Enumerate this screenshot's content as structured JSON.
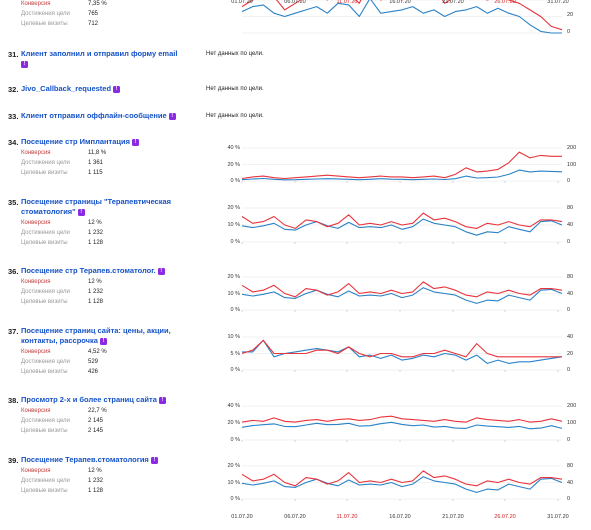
{
  "colors": {
    "conversion_line": "#e8343c",
    "visits_line": "#2a82c8",
    "link": "#1452c8",
    "badge": "#8a2be2"
  },
  "metric_labels": {
    "conversion": "Конверсия",
    "reached": "Достижения цели",
    "visits": "Целевые визиты"
  },
  "no_data_text": "Нет данных по цели.",
  "x_axis_ticks": [
    {
      "label": "01.07.20",
      "weekend": false
    },
    {
      "label": "06.07.20",
      "weekend": false
    },
    {
      "label": "11.07.20",
      "weekend": true
    },
    {
      "label": "16.07.20",
      "weekend": false
    },
    {
      "label": "21.07.20",
      "weekend": false
    },
    {
      "label": "26.07.20",
      "weekend": true
    },
    {
      "label": "31.07.20",
      "weekend": false
    }
  ],
  "top_partial": {
    "conversion": "7,35 %",
    "reached": "765",
    "visits": "712",
    "right_ticks": [
      "20",
      "0"
    ]
  },
  "goals": [
    {
      "number": "31.",
      "title_lines": [
        "Клиент заполнил и отправил форму email"
      ],
      "has_data": false
    },
    {
      "number": "32.",
      "title_lines": [
        "Jivo_Callback_requested"
      ],
      "has_data": false
    },
    {
      "number": "33.",
      "title_lines": [
        "Клиент отправил оффлайн-сообщение"
      ],
      "has_data": false
    },
    {
      "number": "34.",
      "title_lines": [
        "Посещение стр Имплантация"
      ],
      "has_data": true,
      "conversion": "11,8 %",
      "reached": "1 361",
      "visits": "1 115",
      "left_ticks": [
        "40 %",
        "20 %",
        "0 %"
      ],
      "right_ticks": [
        "200",
        "100",
        "0"
      ]
    },
    {
      "number": "35.",
      "title_lines": [
        "Посещение страницы \"Терапевтическая",
        "стоматология\""
      ],
      "has_data": true,
      "conversion": "12 %",
      "reached": "1 232",
      "visits": "1 128",
      "left_ticks": [
        "20 %",
        "10 %",
        "0 %"
      ],
      "right_ticks": [
        "80",
        "40",
        "0"
      ]
    },
    {
      "number": "36.",
      "title_lines": [
        "Посещение стр Терапев.стоматолог."
      ],
      "has_data": true,
      "conversion": "12 %",
      "reached": "1 232",
      "visits": "1 128",
      "left_ticks": [
        "20 %",
        "10 %",
        "0 %"
      ],
      "right_ticks": [
        "80",
        "40",
        "0"
      ]
    },
    {
      "number": "37.",
      "title_lines": [
        "Посещение страниц сайта: цены, акции,",
        "контакты, рассрочка"
      ],
      "has_data": true,
      "conversion": "4,52 %",
      "reached": "529",
      "visits": "426",
      "left_ticks": [
        "10 %",
        "5 %",
        "0 %"
      ],
      "right_ticks": [
        "40",
        "20",
        "0"
      ]
    },
    {
      "number": "38.",
      "title_lines": [
        "Просмотр 2-х и более страниц сайта"
      ],
      "has_data": true,
      "conversion": "22,7 %",
      "reached": "2 145",
      "visits": "2 145",
      "left_ticks": [
        "40 %",
        "20 %",
        "0 %"
      ],
      "right_ticks": [
        "200",
        "100",
        "0"
      ]
    },
    {
      "number": "39.",
      "title_lines": [
        "Посещение Терапев.стоматология"
      ],
      "has_data": true,
      "conversion": "12 %",
      "reached": "1 232",
      "visits": "1 128",
      "left_ticks": [
        "20 %",
        "10 %",
        "0 %"
      ],
      "right_ticks": [
        "80",
        "40",
        "0"
      ]
    }
  ],
  "chart_data": [
    {
      "type": "line",
      "goal": "30",
      "x_days": 31,
      "series": [
        {
          "axis": "left",
          "values": [
            8,
            10,
            12,
            11,
            7,
            9,
            11,
            12,
            10,
            14,
            12,
            9,
            16,
            10,
            11,
            10,
            12,
            11,
            14,
            9,
            11,
            12,
            11,
            10,
            11,
            10,
            9,
            7,
            5,
            2,
            1
          ]
        },
        {
          "axis": "right",
          "values": [
            13,
            16,
            17,
            12,
            10,
            12,
            14,
            16,
            12,
            18,
            17,
            10,
            21,
            12,
            13,
            14,
            16,
            12,
            14,
            10,
            13,
            14,
            16,
            12,
            15,
            12,
            10,
            5,
            1,
            0,
            0
          ]
        }
      ]
    },
    {
      "type": "line",
      "goal": "34",
      "x_days": 31,
      "series": [
        {
          "axis": "left",
          "values": [
            3,
            5,
            6,
            4,
            3,
            4,
            5,
            6,
            7,
            6,
            5,
            4,
            5,
            6,
            5,
            5,
            4,
            5,
            6,
            4,
            8,
            16,
            11,
            12,
            14,
            22,
            35,
            28,
            31,
            30,
            30
          ]
        },
        {
          "axis": "right",
          "values": [
            8,
            12,
            15,
            10,
            7,
            8,
            10,
            12,
            14,
            13,
            10,
            8,
            10,
            14,
            11,
            10,
            8,
            10,
            12,
            9,
            14,
            30,
            18,
            20,
            24,
            40,
            66,
            55,
            60,
            58,
            56
          ]
        }
      ]
    },
    {
      "type": "line",
      "goal": "35",
      "x_days": 31,
      "series": [
        {
          "axis": "left",
          "values": [
            15,
            11,
            12,
            15,
            10,
            8,
            13,
            12,
            9,
            11,
            16,
            10,
            11,
            10,
            12,
            10,
            11,
            17,
            13,
            14,
            12,
            9,
            8,
            11,
            10,
            12,
            10,
            9,
            13,
            13,
            12
          ]
        },
        {
          "axis": "right",
          "values": [
            38,
            34,
            38,
            44,
            30,
            28,
            40,
            48,
            38,
            32,
            46,
            34,
            36,
            34,
            40,
            30,
            36,
            54,
            44,
            40,
            36,
            24,
            16,
            24,
            22,
            36,
            30,
            24,
            48,
            50,
            40
          ]
        }
      ]
    },
    {
      "type": "line",
      "goal": "36",
      "x_days": 31,
      "series": [
        {
          "axis": "left",
          "values": [
            15,
            11,
            12,
            15,
            10,
            8,
            13,
            12,
            9,
            11,
            16,
            10,
            11,
            10,
            12,
            10,
            11,
            17,
            13,
            14,
            12,
            9,
            8,
            11,
            10,
            12,
            10,
            9,
            13,
            13,
            12
          ]
        },
        {
          "axis": "right",
          "values": [
            38,
            34,
            38,
            44,
            30,
            28,
            40,
            48,
            38,
            32,
            46,
            34,
            36,
            34,
            40,
            30,
            36,
            54,
            44,
            40,
            36,
            24,
            16,
            24,
            22,
            36,
            30,
            24,
            48,
            50,
            40
          ]
        }
      ]
    },
    {
      "type": "line",
      "goal": "37",
      "x_days": 31,
      "series": [
        {
          "axis": "left",
          "values": [
            5,
            6,
            9,
            5,
            5,
            5,
            5,
            6,
            6,
            5,
            7,
            5,
            4,
            5,
            5,
            4,
            4,
            5,
            5,
            6,
            5,
            4,
            8,
            5,
            4,
            4,
            4,
            4,
            4,
            4,
            4
          ]
        },
        {
          "axis": "right",
          "values": [
            22,
            22,
            36,
            16,
            20,
            22,
            24,
            26,
            24,
            22,
            28,
            16,
            18,
            14,
            18,
            12,
            14,
            18,
            16,
            20,
            18,
            12,
            18,
            8,
            12,
            8,
            10,
            10,
            12,
            14,
            16
          ]
        }
      ]
    },
    {
      "type": "line",
      "goal": "38",
      "x_days": 31,
      "series": [
        {
          "axis": "left",
          "values": [
            21,
            23,
            22,
            26,
            22,
            21,
            23,
            24,
            22,
            24,
            25,
            23,
            24,
            27,
            28,
            25,
            24,
            23,
            22,
            24,
            22,
            21,
            26,
            24,
            23,
            22,
            24,
            21,
            22,
            25,
            22
          ]
        },
        {
          "axis": "right",
          "values": [
            75,
            85,
            90,
            95,
            80,
            78,
            88,
            98,
            90,
            92,
            98,
            82,
            84,
            96,
            104,
            92,
            84,
            88,
            76,
            80,
            70,
            68,
            88,
            82,
            78,
            74,
            80,
            66,
            70,
            84,
            68
          ]
        }
      ]
    },
    {
      "type": "line",
      "goal": "39",
      "x_days": 31,
      "series": [
        {
          "axis": "left",
          "values": [
            15,
            11,
            12,
            15,
            10,
            8,
            13,
            12,
            9,
            11,
            16,
            10,
            11,
            10,
            12,
            10,
            11,
            17,
            13,
            14,
            12,
            9,
            8,
            11,
            10,
            12,
            10,
            9,
            13,
            13,
            12
          ]
        },
        {
          "axis": "right",
          "values": [
            38,
            34,
            38,
            44,
            30,
            28,
            40,
            48,
            38,
            32,
            46,
            34,
            36,
            34,
            40,
            30,
            36,
            54,
            44,
            40,
            36,
            24,
            16,
            24,
            22,
            36,
            30,
            24,
            48,
            50,
            40
          ]
        }
      ]
    }
  ]
}
